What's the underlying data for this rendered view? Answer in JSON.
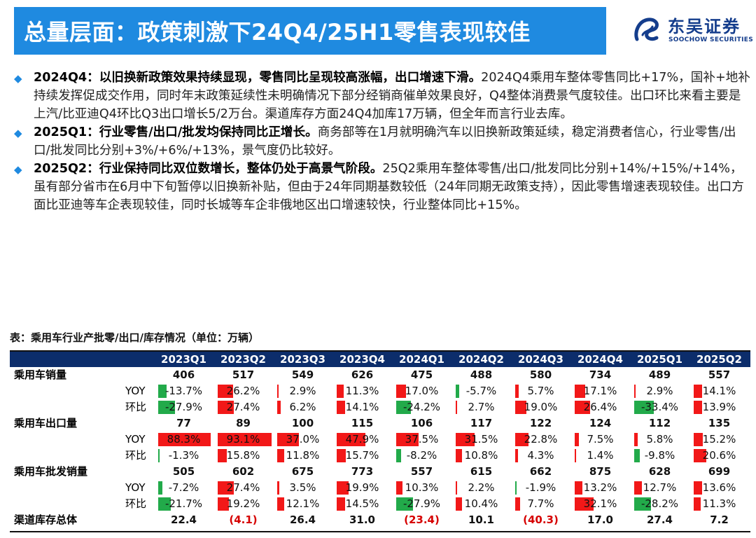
{
  "header": {
    "title": "总量层面：政策刺激下24Q4/25H1零售表现较佳"
  },
  "logo": {
    "cn": "东吴证券",
    "en": "SOOCHOW SECURITIES",
    "color": "#143d8c"
  },
  "bullets": [
    {
      "bold": "2024Q4：以旧换新政策效果持续显现，零售同比呈现较高涨幅，出口增速下滑。",
      "text": "2024Q4乘用车整体零售同比+17%，国补+地补持续发挥促成交作用，同时年末政策延续性未明确情况下部分经销商催单效果良好，Q4整体消费景气度较佳。出口环比来看主要是上汽/比亚迪Q4环比Q3出口增长5/2万台。渠道库存方面24Q4加库17万辆，但全年而言行业去库。"
    },
    {
      "bold": "2025Q1：行业零售/出口/批发均保持同比正增长。",
      "text": "商务部等在1月就明确汽车以旧换新政策延续，稳定消费者信心，行业零售/出口/批发同比分别+3%/+6%/+13%，景气度仍比较好。"
    },
    {
      "bold": "2025Q2：行业保持同比双位数增长，整体仍处于高景气阶段。",
      "text": "25Q2乘用车整体零售/出口/批发同比分别+14%/+15%/+14%，虽有部分省市在6月中下旬暂停以旧换新补贴，但由于24年同期基数较低（24年同期无政策支持），因此零售增速表现较佳。出口方面比亚迪等车企表现较佳，同时长城等车企非俄地区出口增速较快，行业整体同比+15%。"
    }
  ],
  "table": {
    "caption": "表：乘用车行业产批零/出口/库存情况（单位：万辆）",
    "columns": [
      "2023Q1",
      "2023Q2",
      "2023Q3",
      "2023Q4",
      "2024Q1",
      "2024Q2",
      "2024Q3",
      "2024Q4",
      "2025Q1",
      "2025Q2"
    ],
    "rows": [
      {
        "label": "乘用车销量",
        "sub": "",
        "kind": "value",
        "values": [
          "406",
          "517",
          "549",
          "626",
          "475",
          "488",
          "580",
          "734",
          "489",
          "557"
        ]
      },
      {
        "label": "",
        "sub": "YOY",
        "kind": "pct",
        "values": [
          -13.7,
          26.2,
          2.9,
          11.3,
          17.0,
          -5.7,
          5.7,
          17.1,
          2.9,
          14.1
        ]
      },
      {
        "label": "",
        "sub": "环比",
        "kind": "pct",
        "values": [
          -27.9,
          27.4,
          6.2,
          14.1,
          -24.2,
          2.7,
          19.0,
          26.4,
          -33.4,
          13.9
        ]
      },
      {
        "label": "乘用车出口量",
        "sub": "",
        "kind": "value",
        "values": [
          "77",
          "89",
          "100",
          "115",
          "106",
          "117",
          "122",
          "124",
          "112",
          "135"
        ]
      },
      {
        "label": "",
        "sub": "YOY",
        "kind": "pct",
        "values": [
          88.3,
          93.1,
          37.0,
          47.9,
          37.5,
          31.5,
          22.8,
          7.5,
          5.8,
          15.2
        ]
      },
      {
        "label": "",
        "sub": "环比",
        "kind": "pct",
        "values": [
          -1.3,
          15.8,
          11.8,
          15.7,
          -8.2,
          10.8,
          4.3,
          1.4,
          -9.8,
          20.6
        ]
      },
      {
        "label": "乘用车批发销量",
        "sub": "",
        "kind": "value",
        "values": [
          "505",
          "602",
          "675",
          "773",
          "557",
          "615",
          "662",
          "875",
          "628",
          "699"
        ]
      },
      {
        "label": "",
        "sub": "YOY",
        "kind": "pct",
        "values": [
          -7.2,
          27.4,
          3.5,
          19.9,
          10.3,
          2.2,
          -1.9,
          13.2,
          12.7,
          13.6
        ]
      },
      {
        "label": "",
        "sub": "环比",
        "kind": "pct",
        "values": [
          -21.7,
          19.2,
          12.1,
          14.5,
          -27.9,
          10.4,
          7.7,
          32.1,
          -28.2,
          11.3
        ]
      },
      {
        "label": "渠道库存总体",
        "sub": "",
        "kind": "value",
        "values": [
          "22.4",
          "(4.1)",
          "26.4",
          "31.0",
          "(23.4)",
          "10.1",
          "(40.3)",
          "17.0",
          "27.4",
          "7.2"
        ]
      }
    ]
  },
  "colors": {
    "title_bar": "#1f8ae0",
    "header_bg": "#0c2d6b",
    "bar_positive": "#f21818",
    "bar_negative": "#22aa4a",
    "negative_text": "#d60000"
  }
}
